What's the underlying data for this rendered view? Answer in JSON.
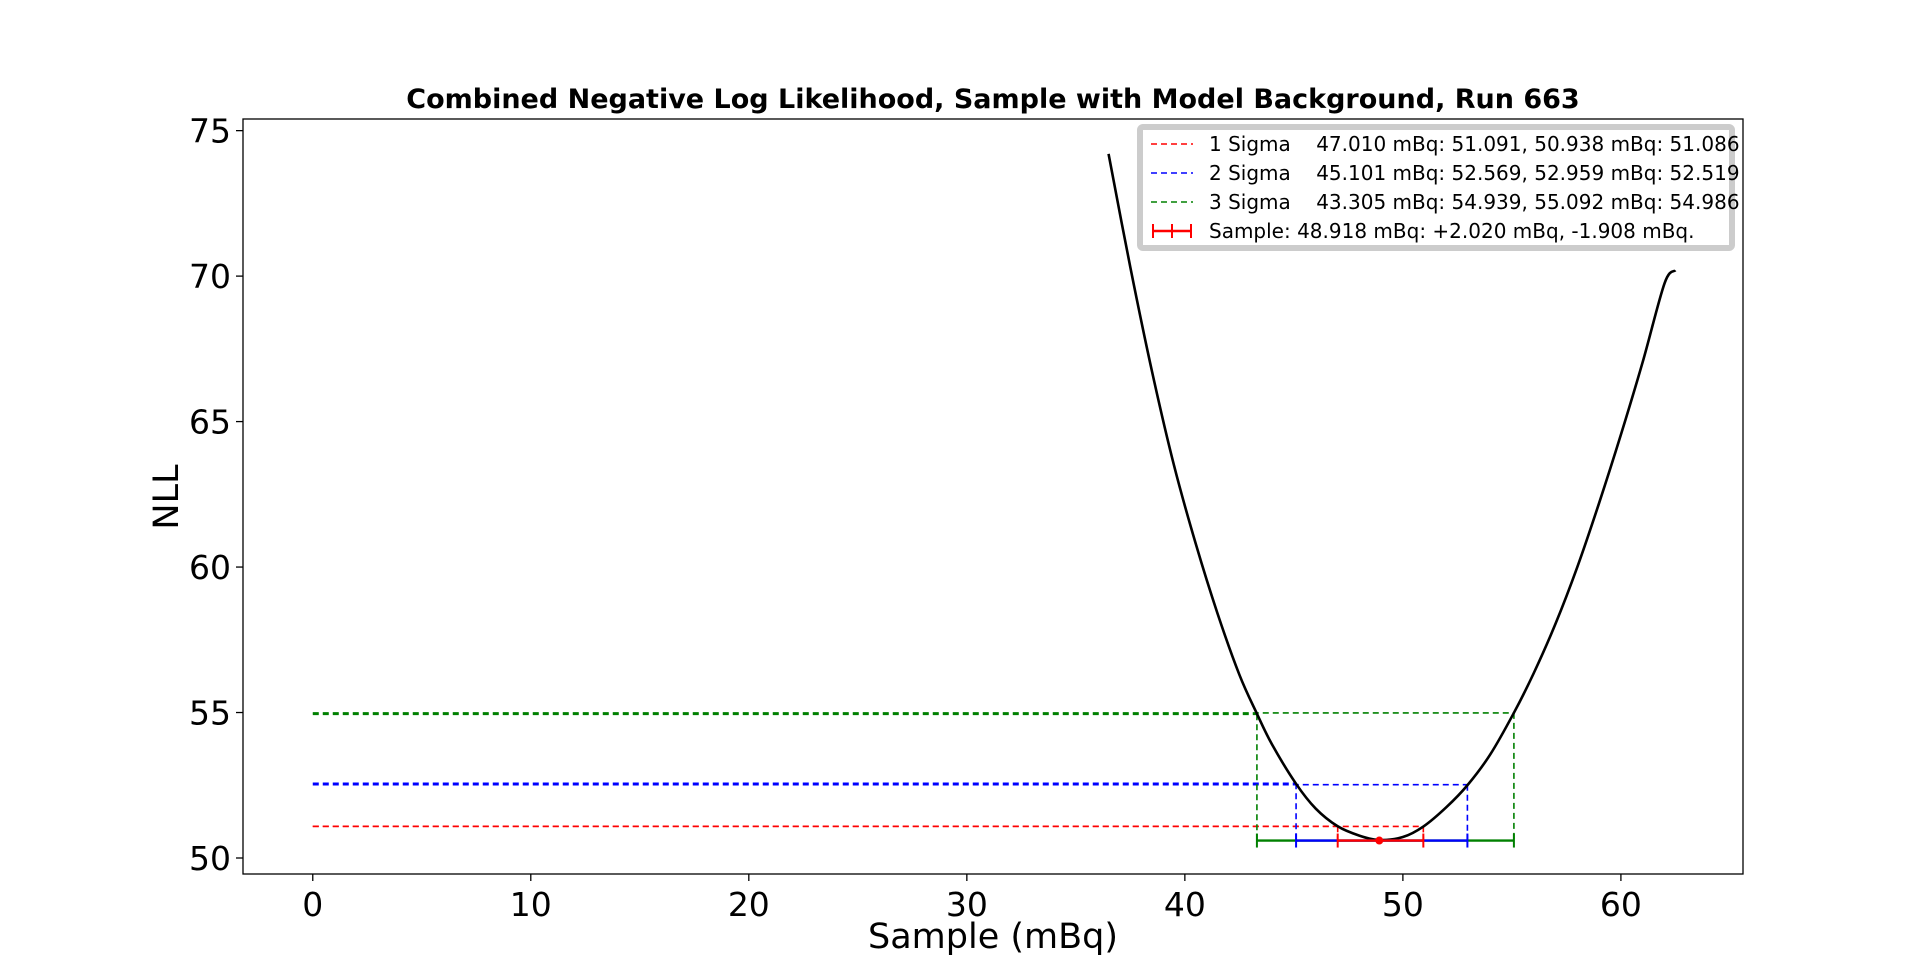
{
  "chart_data": {
    "type": "line",
    "title": "Combined Negative Log Likelihood, Sample with Model Background, Run 663",
    "xlabel": "Sample (mBq)",
    "ylabel": "NLL",
    "xlim": [
      -3.2,
      65.6
    ],
    "ylim": [
      49.45,
      75.4
    ],
    "xticks": [
      0,
      10,
      20,
      30,
      40,
      50,
      60
    ],
    "yticks": [
      50,
      55,
      60,
      65,
      70,
      75
    ],
    "grid": false,
    "legend_position": "top-right",
    "curve": {
      "name": "NLL",
      "color": "#000000",
      "x": [
        36.5,
        37.5,
        38.5,
        39.5,
        40.5,
        41.5,
        42.5,
        43.305,
        44.0,
        45.101,
        46.0,
        47.01,
        48.0,
        48.918,
        50.0,
        50.938,
        52.0,
        52.959,
        54.0,
        55.092,
        56.0,
        57.0,
        58.0,
        59.0,
        60.0,
        61.0,
        62.0,
        62.5
      ],
      "y": [
        74.2,
        70.3,
        66.7,
        63.5,
        60.8,
        58.4,
        56.3,
        54.96,
        53.9,
        52.55,
        51.7,
        51.09,
        50.77,
        50.62,
        50.72,
        51.08,
        51.75,
        52.5,
        53.55,
        54.99,
        56.35,
        58.05,
        60.0,
        62.2,
        64.55,
        67.05,
        69.75,
        70.2
      ]
    },
    "sample": {
      "label": "Sample: 48.918 mBq: +2.020 mBq, -1.908 mBq.",
      "value": 48.918,
      "nll_min": 50.6,
      "err_plus": 2.02,
      "err_minus": 1.908,
      "color": "#ff0000"
    },
    "sigma_levels": [
      {
        "label": "1 Sigma    47.010 mBq: 51.091, 50.938 mBq: 51.086",
        "low": 47.01,
        "high": 50.938,
        "nll_low": 51.091,
        "nll_high": 51.086,
        "color": "#ff0000"
      },
      {
        "label": "2 Sigma    45.101 mBq: 52.569, 52.959 mBq: 52.519",
        "low": 45.101,
        "high": 52.959,
        "nll_low": 52.569,
        "nll_high": 52.519,
        "color": "#0000ff"
      },
      {
        "label": "3 Sigma    43.305 mBq: 54.939, 55.092 mBq: 54.986",
        "low": 43.305,
        "high": 55.092,
        "nll_low": 54.939,
        "nll_high": 54.986,
        "color": "#008000"
      }
    ]
  }
}
